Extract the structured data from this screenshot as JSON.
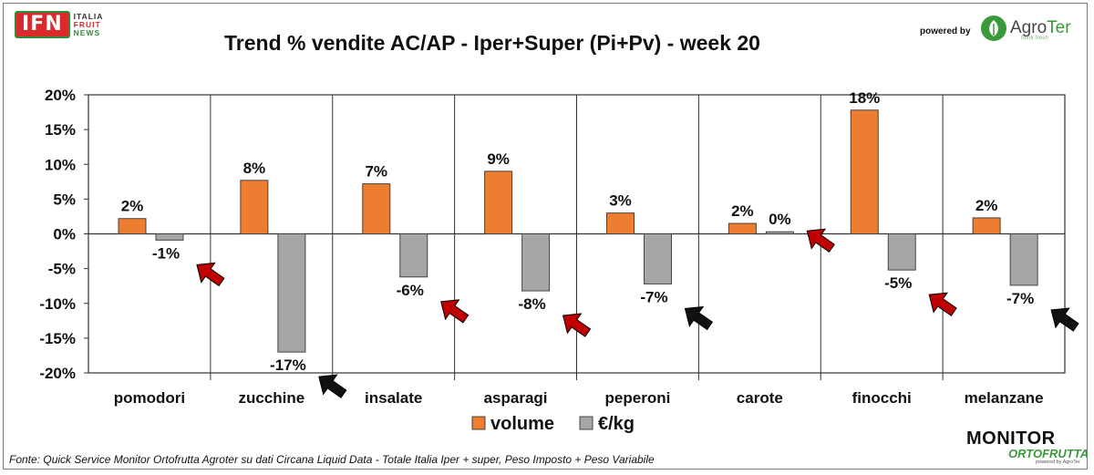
{
  "header": {
    "logo_letters": "IFN",
    "logo_line1": "ITALIA",
    "logo_line2": "FRUIT",
    "logo_line3": "NEWS",
    "powered_by": "powered by",
    "brand_name_a": "Agro",
    "brand_name_b": "Ter",
    "brand_tagline": "think fresh"
  },
  "footer": {
    "source": "Fonte: Quick Service Monitor Ortofrutta Agroter su dati Circana Liquid Data - Totale Italia Iper + super, Peso Imposto + Peso Variabile",
    "monitor_line1": "MONITOR",
    "monitor_line2": "ORTOFRUTTA",
    "monitor_line3": "powered by AgroTer"
  },
  "colors": {
    "volume": "#ed7d31",
    "price": "#a6a6a6",
    "arrow_red": "#c00000",
    "arrow_black": "#111111"
  },
  "chart_data": {
    "type": "bar",
    "title": "Trend % vendite AC/AP -  Iper+Super (Pi+Pv) - week 20",
    "categories": [
      "pomodori",
      "zucchine",
      "insalate",
      "asparagi",
      "peperoni",
      "carote",
      "finocchi",
      "melanzane"
    ],
    "series": [
      {
        "name": "volume",
        "values": [
          2.2,
          7.7,
          7.2,
          9.0,
          3.0,
          1.5,
          17.8,
          2.3
        ],
        "labels": [
          "2%",
          "8%",
          "7%",
          "9%",
          "3%",
          "2%",
          "18%",
          "2%"
        ]
      },
      {
        "name": "€/kg",
        "values": [
          -0.9,
          -17.0,
          -6.2,
          -8.2,
          -7.2,
          0.3,
          -5.2,
          -7.4
        ],
        "labels": [
          "-1%",
          "-17%",
          "-6%",
          "-8%",
          "-7%",
          "0%",
          "-5%",
          "-7%"
        ]
      }
    ],
    "arrows": [
      "red",
      "black",
      "red",
      "red",
      "black",
      "red",
      "red",
      "black"
    ],
    "yticks": [
      "20%",
      "15%",
      "10%",
      "5%",
      "0%",
      "-5%",
      "-10%",
      "-15%",
      "-20%"
    ],
    "ylim": [
      -20,
      20
    ],
    "xlabel": "",
    "ylabel": "",
    "legend_position": "bottom"
  }
}
